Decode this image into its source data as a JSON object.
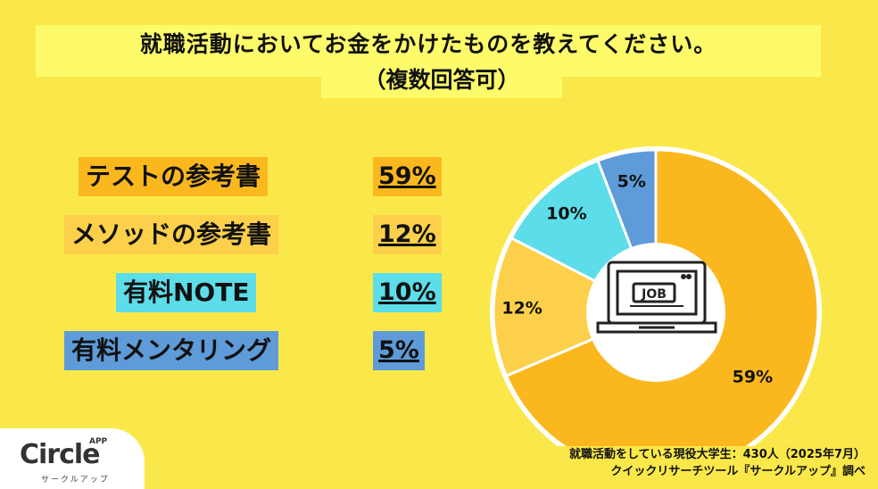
{
  "title": {
    "line1": "就職活動においてお金をかけたものを教えてください。",
    "line2": "（複数回答可）"
  },
  "items": [
    {
      "label": "テストの参考書",
      "percent_label": "59%",
      "color": "#FBB81E"
    },
    {
      "label": "メソッドの参考書",
      "percent_label": "12%",
      "color": "#FCD04A"
    },
    {
      "label": "有料NOTE",
      "percent_label": "10%",
      "color": "#5CDDE9"
    },
    {
      "label": "有料メンタリング",
      "percent_label": "5%",
      "color": "#5E9BD8"
    }
  ],
  "chart_data": {
    "type": "pie",
    "labels": [
      "テストの参考書",
      "メソッドの参考書",
      "有料NOTE",
      "有料メンタリング"
    ],
    "values": [
      59,
      12,
      10,
      5
    ],
    "data_labels": [
      "59%",
      "12%",
      "10%",
      "5%"
    ],
    "colors": [
      "#FBB81E",
      "#FCD04A",
      "#5CDDE9",
      "#5E9BD8"
    ],
    "donut": true,
    "center_icon": "laptop-job-icon",
    "center_icon_text": "JOB"
  },
  "source": {
    "line1": "就職活動をしている現役大学生：430人（2025年7月）",
    "line2": "クイックリサーチツール『サークルアップ』調べ"
  },
  "logo": {
    "name": "Circle",
    "badge": "APP",
    "sub": "サークルアップ"
  }
}
